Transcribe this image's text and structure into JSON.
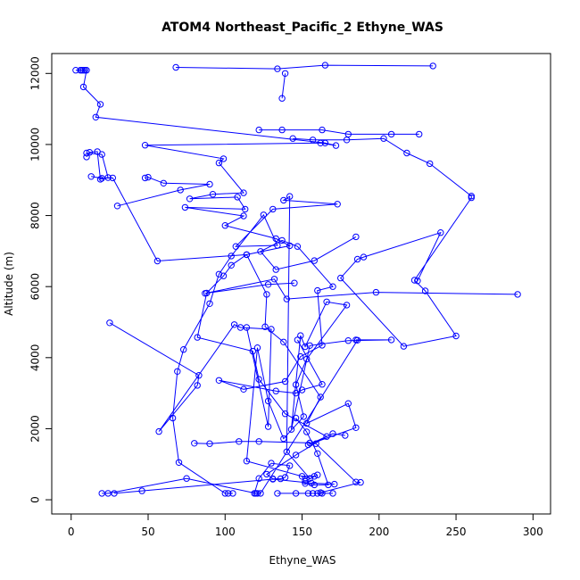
{
  "chart_data": {
    "type": "line",
    "title": "ATOM4 Northeast_Pacific_2 Ethyne_WAS",
    "xlabel": "Ethyne_WAS",
    "ylabel": "Altitude (m)",
    "xlim": [
      0,
      300
    ],
    "ylim": [
      0,
      12000
    ],
    "xticks": [
      0,
      50,
      100,
      150,
      200,
      250,
      300
    ],
    "yticks": [
      0,
      2000,
      4000,
      6000,
      8000,
      10000,
      12000
    ],
    "grid": false,
    "legend": "none",
    "line_color": "#0000ff",
    "marker": "open-circle",
    "series": [
      {
        "points": [
          [
            3,
            12090
          ],
          [
            6,
            12090
          ],
          [
            7,
            12090
          ],
          [
            8,
            12090
          ],
          [
            9,
            12090
          ],
          [
            10,
            12090
          ],
          [
            8,
            11620
          ],
          [
            19,
            11130
          ],
          [
            16,
            10770
          ],
          [
            165,
            10040
          ],
          [
            172,
            9970
          ],
          [
            162,
            10040
          ],
          [
            48,
            9980
          ],
          [
            99,
            9600
          ],
          [
            96,
            9480
          ],
          [
            112,
            8640
          ],
          [
            92,
            8600
          ],
          [
            77,
            8470
          ],
          [
            108,
            8520
          ],
          [
            113,
            8180
          ],
          [
            74,
            8230
          ],
          [
            112,
            7990
          ],
          [
            100,
            7720
          ],
          [
            133,
            7350
          ],
          [
            142,
            7150
          ],
          [
            114,
            6900
          ],
          [
            104,
            6600
          ],
          [
            99,
            6300
          ],
          [
            88,
            5820
          ],
          [
            82,
            4570
          ],
          [
            118,
            4180
          ],
          [
            122,
            3390
          ],
          [
            139,
            2420
          ],
          [
            166,
            1780
          ],
          [
            146,
            1260
          ],
          [
            127,
            720
          ],
          [
            131,
            590
          ],
          [
            136,
            590
          ],
          [
            139,
            630
          ],
          [
            142,
            960
          ],
          [
            130,
            1030
          ],
          [
            122,
            600
          ],
          [
            119,
            180
          ],
          [
            121,
            180
          ],
          [
            123,
            180
          ],
          [
            186,
            4490
          ],
          [
            185,
            4500
          ],
          [
            208,
            4500
          ],
          [
            180,
            4480
          ],
          [
            155,
            4340
          ],
          [
            143,
            1980
          ],
          [
            149,
            4620
          ],
          [
            152,
            4310
          ],
          [
            166,
            5570
          ],
          [
            179,
            5480
          ],
          [
            153,
            3960
          ],
          [
            146,
            3240
          ],
          [
            151,
            2340
          ],
          [
            138,
            1720
          ],
          [
            128,
            2780
          ],
          [
            121,
            4280
          ],
          [
            114,
            1090
          ],
          [
            155,
            600
          ],
          [
            140,
            1350
          ],
          [
            142,
            8540
          ],
          [
            138,
            8430
          ],
          [
            173,
            8320
          ],
          [
            131,
            8180
          ],
          [
            107,
            7130
          ],
          [
            134,
            7160
          ],
          [
            125,
            8020
          ],
          [
            104,
            6860
          ],
          [
            96,
            6350
          ],
          [
            90,
            5520
          ],
          [
            73,
            4230
          ],
          [
            69,
            3610
          ],
          [
            66,
            2300
          ],
          [
            70,
            1050
          ],
          [
            100,
            180
          ],
          [
            102,
            180
          ],
          [
            105,
            180
          ]
        ]
      }
    ],
    "extra_segments": [
      [
        [
          68,
          12170
        ],
        [
          134,
          12130
        ],
        [
          165,
          12230
        ],
        [
          235,
          12210
        ]
      ],
      [
        [
          137,
          11300
        ],
        [
          139,
          12000
        ]
      ],
      [
        [
          122,
          10410
        ],
        [
          137,
          10410
        ],
        [
          163,
          10410
        ],
        [
          180,
          10290
        ],
        [
          208,
          10290
        ],
        [
          226,
          10290
        ]
      ],
      [
        [
          144,
          10170
        ],
        [
          157,
          10130
        ],
        [
          179,
          10130
        ],
        [
          203,
          10170
        ],
        [
          218,
          9760
        ],
        [
          233,
          9460
        ],
        [
          260,
          8550
        ],
        [
          260,
          8500
        ],
        [
          223,
          6180
        ],
        [
          230,
          5880
        ],
        [
          250,
          4610
        ],
        [
          216,
          4320
        ],
        [
          175,
          6240
        ],
        [
          186,
          6770
        ],
        [
          190,
          6830
        ],
        [
          240,
          7520
        ],
        [
          225,
          6160
        ]
      ],
      [
        [
          10,
          9760
        ],
        [
          20,
          9720
        ],
        [
          24,
          9070
        ],
        [
          19,
          9020
        ],
        [
          17,
          9800
        ],
        [
          12,
          9780
        ],
        [
          10,
          9650
        ]
      ],
      [
        [
          48,
          9060
        ],
        [
          50,
          9080
        ],
        [
          60,
          8910
        ],
        [
          90,
          8880
        ],
        [
          71,
          8720
        ],
        [
          30,
          8270
        ]
      ],
      [
        [
          13,
          9100
        ],
        [
          20,
          9050
        ],
        [
          27,
          9060
        ],
        [
          56,
          6720
        ],
        [
          114,
          6900
        ],
        [
          127,
          5780
        ],
        [
          126,
          4870
        ],
        [
          138,
          4440
        ],
        [
          162,
          2890
        ],
        [
          153,
          2150
        ],
        [
          180,
          2710
        ],
        [
          185,
          2030
        ],
        [
          154,
          1550
        ],
        [
          170,
          1860
        ],
        [
          178,
          1810
        ]
      ],
      [
        [
          25,
          4980
        ],
        [
          83,
          3500
        ],
        [
          82,
          3220
        ],
        [
          57,
          1920
        ],
        [
          106,
          4930
        ],
        [
          110,
          4850
        ],
        [
          130,
          4800
        ],
        [
          128,
          2060
        ],
        [
          114,
          4850
        ]
      ],
      [
        [
          185,
          7400
        ],
        [
          158,
          6730
        ],
        [
          133,
          6480
        ],
        [
          123,
          6990
        ],
        [
          137,
          7300
        ],
        [
          147,
          7130
        ],
        [
          170,
          6000
        ],
        [
          160,
          5890
        ],
        [
          163,
          4350
        ],
        [
          149,
          4030
        ],
        [
          139,
          3330
        ],
        [
          112,
          3110
        ],
        [
          96,
          3360
        ],
        [
          133,
          3060
        ],
        [
          146,
          3000
        ],
        [
          150,
          3090
        ],
        [
          163,
          3250
        ],
        [
          147,
          4500
        ]
      ],
      [
        [
          80,
          1590
        ],
        [
          90,
          1580
        ],
        [
          109,
          1640
        ],
        [
          122,
          1640
        ],
        [
          155,
          1600
        ],
        [
          159,
          1580
        ],
        [
          185,
          500
        ],
        [
          188,
          490
        ],
        [
          162,
          200
        ],
        [
          160,
          180
        ],
        [
          163,
          180
        ],
        [
          170,
          180
        ],
        [
          157,
          180
        ],
        [
          154,
          180
        ],
        [
          146,
          180
        ],
        [
          134,
          180
        ]
      ],
      [
        [
          28,
          180
        ],
        [
          46,
          250
        ],
        [
          131,
          580
        ],
        [
          156,
          470
        ],
        [
          171,
          440
        ]
      ],
      [
        [
          20,
          180
        ],
        [
          24,
          180
        ],
        [
          75,
          600
        ],
        [
          120,
          180
        ]
      ],
      [
        [
          290,
          5780
        ],
        [
          198,
          5840
        ],
        [
          140,
          5650
        ],
        [
          132,
          6210
        ],
        [
          87,
          5810
        ],
        [
          128,
          6060
        ],
        [
          145,
          6100
        ]
      ],
      [
        [
          152,
          520
        ],
        [
          160,
          700
        ],
        [
          158,
          660
        ],
        [
          150,
          660
        ],
        [
          152,
          460
        ],
        [
          158,
          420
        ],
        [
          167,
          420
        ],
        [
          160,
          1300
        ],
        [
          153,
          1910
        ],
        [
          146,
          2300
        ]
      ]
    ]
  }
}
